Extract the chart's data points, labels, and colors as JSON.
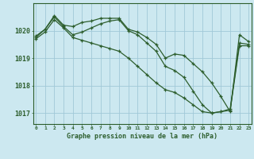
{
  "title": "Graphe pression niveau de la mer (hPa)",
  "bg_color": "#cce8f0",
  "line_color": "#2d5e2d",
  "grid_color": "#a0c8d8",
  "ylim": [
    1016.6,
    1021.0
  ],
  "xlim": [
    -0.3,
    23.3
  ],
  "yticks": [
    1017,
    1018,
    1019,
    1020
  ],
  "xtick_labels": [
    "0",
    "1",
    "2",
    "3",
    "4",
    "5",
    "6",
    "7",
    "8",
    "9",
    "10",
    "11",
    "12",
    "13",
    "14",
    "15",
    "16",
    "17",
    "18",
    "19",
    "20",
    "21",
    "22",
    "23"
  ],
  "series": [
    {
      "x": [
        0,
        1,
        2,
        3,
        4,
        5,
        6,
        7,
        8,
        9,
        10,
        11,
        12,
        13,
        14,
        15,
        16,
        17,
        18,
        19,
        20,
        21,
        22,
        23
      ],
      "y": [
        1019.8,
        1020.05,
        1020.55,
        1020.2,
        1020.15,
        1020.3,
        1020.35,
        1020.45,
        1020.45,
        1020.45,
        1020.05,
        1019.95,
        1019.75,
        1019.5,
        1019.0,
        1019.15,
        1019.1,
        1018.8,
        1018.5,
        1018.1,
        1017.6,
        1017.05,
        1019.85,
        1019.6
      ]
    },
    {
      "x": [
        0,
        1,
        2,
        3,
        4,
        5,
        6,
        7,
        8,
        9,
        10,
        11,
        12,
        13,
        14,
        15,
        16,
        17,
        18,
        19,
        20,
        21,
        22,
        23
      ],
      "y": [
        1019.75,
        1020.05,
        1020.5,
        1020.15,
        1019.85,
        1019.95,
        1020.1,
        1020.25,
        1020.35,
        1020.4,
        1020.0,
        1019.85,
        1019.55,
        1019.25,
        1018.7,
        1018.55,
        1018.3,
        1017.8,
        1017.3,
        1017.0,
        1017.05,
        1017.15,
        1019.55,
        1019.5
      ]
    },
    {
      "x": [
        0,
        1,
        2,
        3,
        4,
        5,
        6,
        7,
        8,
        9,
        10,
        11,
        12,
        13,
        14,
        15,
        16,
        17,
        18,
        19,
        20,
        21,
        22,
        23
      ],
      "y": [
        1019.7,
        1019.95,
        1020.4,
        1020.1,
        1019.75,
        1019.65,
        1019.55,
        1019.45,
        1019.35,
        1019.25,
        1019.0,
        1018.7,
        1018.4,
        1018.1,
        1017.85,
        1017.75,
        1017.55,
        1017.3,
        1017.05,
        1017.0,
        1017.05,
        1017.1,
        1019.45,
        1019.45
      ]
    }
  ]
}
